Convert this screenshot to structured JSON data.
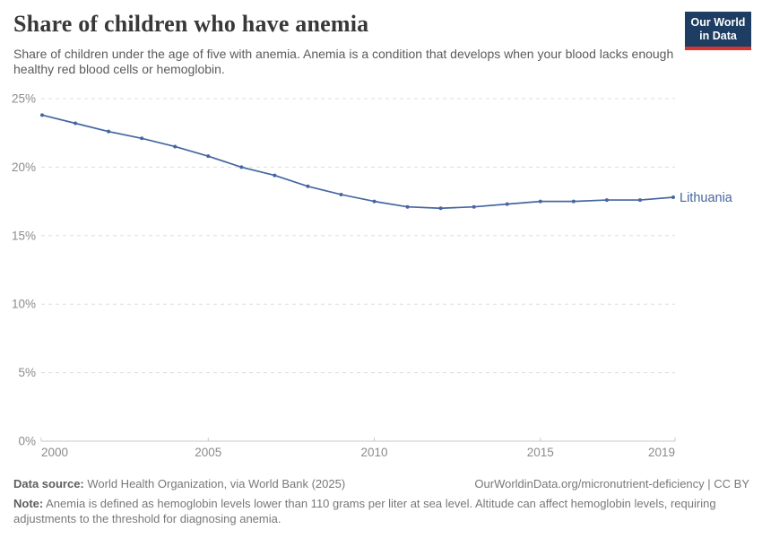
{
  "header": {
    "title": "Share of children who have anemia",
    "subtitle": "Share of children under the age of five with anemia. Anemia is a condition that develops when your blood lacks enough healthy red blood cells or hemoglobin.",
    "logo": {
      "line1": "Our World",
      "line2": "in Data"
    }
  },
  "chart_data": {
    "type": "line",
    "title": "Share of children who have anemia",
    "xlabel": "",
    "ylabel": "",
    "xlim": [
      2000,
      2019
    ],
    "ylim": [
      0,
      25
    ],
    "grid": "horizontal-dashed",
    "legend_position": "end-of-line-label",
    "yticks": [
      {
        "value": 0,
        "label": "0%"
      },
      {
        "value": 5,
        "label": "5%"
      },
      {
        "value": 10,
        "label": "10%"
      },
      {
        "value": 15,
        "label": "15%"
      },
      {
        "value": 20,
        "label": "20%"
      },
      {
        "value": 25,
        "label": "25%"
      }
    ],
    "xticks": [
      {
        "value": 2000,
        "label": "2000"
      },
      {
        "value": 2005,
        "label": "2005"
      },
      {
        "value": 2010,
        "label": "2010"
      },
      {
        "value": 2015,
        "label": "2015"
      },
      {
        "value": 2019,
        "label": "2019"
      }
    ],
    "series": [
      {
        "name": "Lithuania",
        "color": "#4566a0",
        "x": [
          2000,
          2001,
          2002,
          2003,
          2004,
          2005,
          2006,
          2007,
          2008,
          2009,
          2010,
          2011,
          2012,
          2013,
          2014,
          2015,
          2016,
          2017,
          2018,
          2019
        ],
        "values": [
          23.8,
          23.2,
          22.6,
          22.1,
          21.5,
          20.8,
          20.0,
          19.4,
          18.6,
          18.0,
          17.5,
          17.1,
          17.0,
          17.1,
          17.3,
          17.5,
          17.5,
          17.6,
          17.6,
          17.8
        ]
      }
    ]
  },
  "footer": {
    "datasource_label": "Data source:",
    "datasource_text": " World Health Organization, via World Bank (2025)",
    "attribution": "OurWorldinData.org/micronutrient-deficiency | CC BY",
    "note_label": "Note:",
    "note_text": " Anemia is defined as hemoglobin levels lower than 110 grams per liter at sea level. Altitude can affect hemoglobin levels, requiring adjustments to the threshold for diagnosing anemia."
  },
  "colors": {
    "accent_blue": "#4566a0",
    "logo_bg": "#1d3d63",
    "logo_stripe": "#d8352f",
    "grid": "#dddddd",
    "axis": "#c9c9c9",
    "tick_text": "#8b8b8b"
  }
}
